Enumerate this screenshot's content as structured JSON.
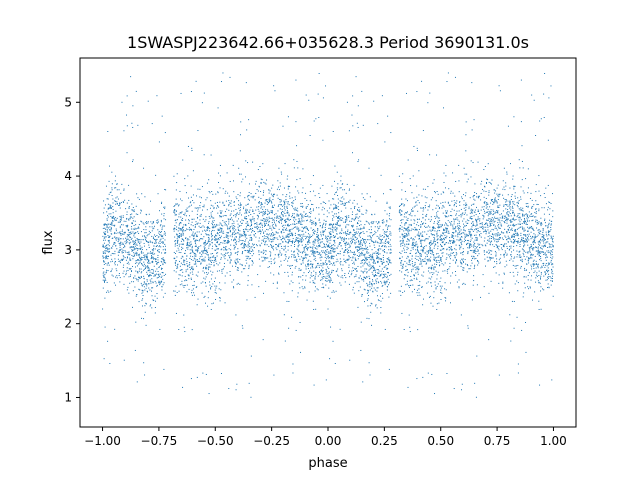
{
  "chart_data": {
    "type": "scatter",
    "title": "1SWASPJ223642.66+035628.3 Period 3690131.0s",
    "xlabel": "phase",
    "ylabel": "flux",
    "xlim": [
      -1.1,
      1.1
    ],
    "ylim": [
      0.6,
      5.6
    ],
    "x_ticks": [
      -1.0,
      -0.75,
      -0.5,
      -0.25,
      0.0,
      0.25,
      0.5,
      0.75,
      1.0
    ],
    "x_tick_labels": [
      "−1.00",
      "−0.75",
      "−0.50",
      "−0.25",
      "0.00",
      "0.25",
      "0.50",
      "0.75",
      "1.00"
    ],
    "y_ticks": [
      1,
      2,
      3,
      4,
      5
    ],
    "y_tick_labels": [
      "1",
      "2",
      "3",
      "4",
      "5"
    ],
    "grid": false,
    "marker_color": "#1f77b4",
    "series": [
      {
        "description_points": "phase-folded light curve, plotted twice (phase -1..0 and 0..1)",
        "profile": [
          {
            "x": -1.0,
            "y": 3.0
          },
          {
            "x": -0.95,
            "y": 3.3
          },
          {
            "x": -0.875,
            "y": 3.1
          },
          {
            "x": -0.8,
            "y": 2.8
          },
          {
            "x": -0.75,
            "y": 2.9
          },
          {
            "x": -0.7,
            "y": 3.2
          },
          {
            "x": -0.6,
            "y": 3.0
          },
          {
            "x": -0.5,
            "y": 3.1
          },
          {
            "x": -0.4,
            "y": 3.2
          },
          {
            "x": -0.3,
            "y": 3.35
          },
          {
            "x": -0.2,
            "y": 3.3
          },
          {
            "x": -0.1,
            "y": 3.15
          },
          {
            "x": -0.05,
            "y": 3.0
          },
          {
            "x": 0.0,
            "y": 3.0
          }
        ]
      }
    ]
  }
}
